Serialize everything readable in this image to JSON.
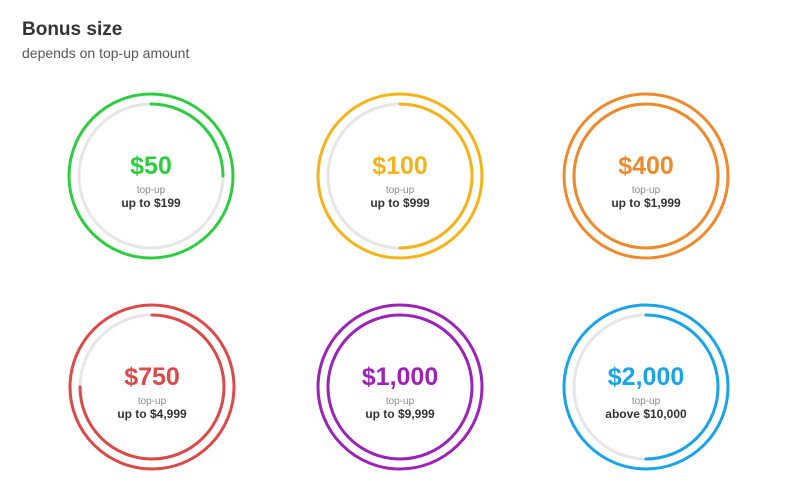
{
  "header": {
    "title": "Bonus size",
    "subtitle": "depends on top-up amount"
  },
  "tiles": [
    {
      "bonus": "$50",
      "label": "top-up",
      "range": "up to $199",
      "color": "#2ecc40",
      "progress": 0.25
    },
    {
      "bonus": "$100",
      "label": "top-up",
      "range": "up to $999",
      "color": "#f5b31a",
      "progress": 0.5
    },
    {
      "bonus": "$400",
      "label": "top-up",
      "range": "up to $1,999",
      "color": "#ee8a2c",
      "progress": 1.0
    },
    {
      "bonus": "$750",
      "label": "top-up",
      "range": "up to $4,999",
      "color": "#d94a48",
      "progress": 0.75
    },
    {
      "bonus": "$1,000",
      "label": "top-up",
      "range": "up to $9,999",
      "color": "#9b23b8",
      "progress": 1.0
    },
    {
      "bonus": "$2,000",
      "label": "top-up",
      "range": "above $10,000",
      "color": "#1aa3e8",
      "progress": 0.5
    }
  ]
}
